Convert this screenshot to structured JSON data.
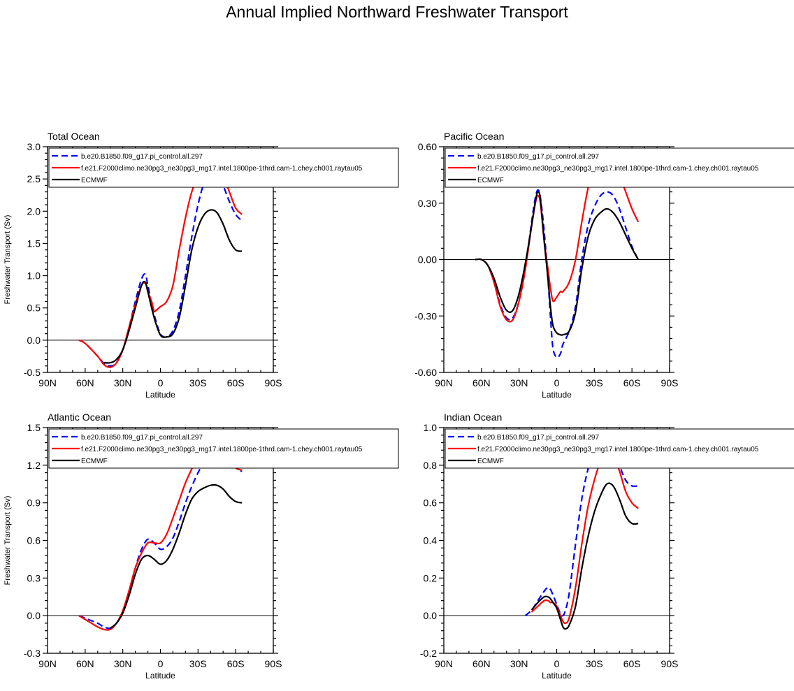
{
  "figure_title": "Annual Implied Northward Freshwater Transport",
  "legend_entries": [
    "b.e20.B1850.f09_g17.pi_control.all.297",
    "f.e21.F2000climo.ne30pg3_ne30pg3_mg17.intel.1800pe-1thrd.cam-1.chey.ch001.raytau05",
    "ECMWF"
  ],
  "colors": {
    "series_0": "#0000ff",
    "series_1": "#ff0000",
    "series_2": "#000000",
    "axis": "#000000"
  },
  "chart_data": [
    {
      "type": "line",
      "title": "Total Ocean",
      "xlabel": "Latitude",
      "ylabel": "Freshwater Transport (Sv)",
      "xlim": [
        90,
        -90
      ],
      "xticks": [
        90,
        60,
        30,
        0,
        -30,
        -60,
        -90
      ],
      "xticklabels": [
        "90N",
        "60N",
        "30N",
        "0",
        "30S",
        "60S",
        "90S"
      ],
      "ylim": [
        -0.5,
        3.0
      ],
      "yticks": [
        -0.5,
        0.0,
        0.5,
        1.0,
        1.5,
        2.0,
        2.5,
        3.0
      ],
      "yticklabels": [
        "-0.5",
        "0.0",
        "0.5",
        "1.0",
        "1.5",
        "2.0",
        "2.5",
        "3.0"
      ],
      "series": [
        {
          "name": "b.e20.B1850.f09_g17.pi_control.all.297",
          "style": "dashed",
          "x": [
            65,
            60,
            50,
            45,
            40,
            35,
            30,
            25,
            20,
            15,
            12,
            10,
            5,
            0,
            -5,
            -10,
            -15,
            -20,
            -25,
            -30,
            -35,
            -40,
            -45,
            -50,
            -55,
            -60,
            -65
          ],
          "y": [
            0.0,
            -0.05,
            -0.25,
            -0.36,
            -0.4,
            -0.35,
            -0.15,
            0.2,
            0.6,
            0.95,
            1.02,
            0.85,
            0.4,
            0.1,
            0.05,
            0.15,
            0.45,
            1.0,
            1.6,
            2.1,
            2.45,
            2.62,
            2.6,
            2.4,
            2.15,
            1.95,
            1.85
          ]
        },
        {
          "name": "f.e21.F2000climo.ne30pg3_ne30pg3_mg17.intel.1800pe-1thrd.cam-1.chey.ch001.raytau05",
          "style": "solid",
          "x": [
            65,
            60,
            50,
            45,
            40,
            35,
            30,
            25,
            20,
            15,
            12,
            10,
            7,
            5,
            3,
            0,
            -5,
            -10,
            -15,
            -20,
            -25,
            -30,
            -35,
            -40,
            -45,
            -50,
            -55,
            -60,
            -65
          ],
          "y": [
            0.0,
            -0.05,
            -0.25,
            -0.38,
            -0.42,
            -0.35,
            -0.15,
            0.2,
            0.55,
            0.85,
            0.88,
            0.75,
            0.6,
            0.45,
            0.47,
            0.52,
            0.6,
            0.85,
            1.4,
            1.9,
            2.3,
            2.55,
            2.72,
            2.82,
            2.75,
            2.55,
            2.3,
            2.05,
            1.95
          ]
        },
        {
          "name": "ECMWF",
          "style": "solid",
          "x": [
            45,
            40,
            35,
            30,
            25,
            20,
            15,
            12,
            10,
            5,
            0,
            -5,
            -10,
            -15,
            -20,
            -25,
            -30,
            -35,
            -40,
            -45,
            -50,
            -55,
            -60,
            -65
          ],
          "y": [
            -0.35,
            -0.35,
            -0.3,
            -0.15,
            0.15,
            0.5,
            0.85,
            0.9,
            0.75,
            0.35,
            0.08,
            0.05,
            0.1,
            0.35,
            0.85,
            1.4,
            1.75,
            1.95,
            2.02,
            1.98,
            1.8,
            1.55,
            1.4,
            1.38
          ]
        }
      ]
    },
    {
      "type": "line",
      "title": "Pacific Ocean",
      "xlabel": "Latitude",
      "ylabel": "",
      "xlim": [
        90,
        -90
      ],
      "xticks": [
        90,
        60,
        30,
        0,
        -30,
        -60,
        -90
      ],
      "xticklabels": [
        "90N",
        "60N",
        "30N",
        "0",
        "30S",
        "60S",
        "90S"
      ],
      "ylim": [
        -0.6,
        0.6
      ],
      "yticks": [
        -0.6,
        -0.3,
        0.0,
        0.3,
        0.6
      ],
      "yticklabels": [
        "-0.60",
        "-0.30",
        "0.00",
        "0.30",
        "0.60"
      ],
      "series": [
        {
          "name": "b.e20.B1850.f09_g17.pi_control.all.297",
          "style": "dashed",
          "x": [
            65,
            60,
            55,
            50,
            45,
            40,
            35,
            30,
            25,
            20,
            17,
            15,
            13,
            10,
            7,
            5,
            3,
            0,
            -3,
            -5,
            -10,
            -15,
            -20,
            -25,
            -30,
            -35,
            -40,
            -45,
            -50,
            -55,
            -60,
            -65
          ],
          "y": [
            0.0,
            0.0,
            -0.03,
            -0.12,
            -0.24,
            -0.31,
            -0.31,
            -0.22,
            -0.05,
            0.2,
            0.33,
            0.37,
            0.33,
            0.15,
            -0.1,
            -0.3,
            -0.47,
            -0.52,
            -0.5,
            -0.45,
            -0.38,
            -0.25,
            0.0,
            0.18,
            0.28,
            0.34,
            0.36,
            0.34,
            0.27,
            0.17,
            0.07,
            0.0
          ]
        },
        {
          "name": "f.e21.F2000climo.ne30pg3_ne30pg3_mg17.intel.1800pe-1thrd.cam-1.chey.ch001.raytau05",
          "style": "solid",
          "x": [
            65,
            60,
            55,
            50,
            45,
            40,
            35,
            30,
            25,
            20,
            17,
            15,
            13,
            10,
            7,
            5,
            3,
            0,
            -3,
            -5,
            -10,
            -15,
            -20,
            -25,
            -30,
            -35,
            -40,
            -45,
            -50,
            -55,
            -60,
            -65
          ],
          "y": [
            0.0,
            0.0,
            -0.03,
            -0.12,
            -0.25,
            -0.32,
            -0.32,
            -0.22,
            -0.05,
            0.18,
            0.3,
            0.34,
            0.3,
            0.1,
            -0.05,
            -0.15,
            -0.22,
            -0.2,
            -0.17,
            -0.17,
            -0.12,
            0.0,
            0.2,
            0.38,
            0.5,
            0.55,
            0.56,
            0.53,
            0.45,
            0.36,
            0.27,
            0.2
          ]
        },
        {
          "name": "ECMWF",
          "style": "solid",
          "x": [
            65,
            60,
            55,
            50,
            45,
            40,
            35,
            30,
            25,
            20,
            17,
            15,
            13,
            10,
            7,
            5,
            3,
            0,
            -3,
            -5,
            -10,
            -15,
            -20,
            -25,
            -30,
            -35,
            -40,
            -45,
            -50,
            -55,
            -60,
            -65
          ],
          "y": [
            0.0,
            0.0,
            -0.03,
            -0.1,
            -0.2,
            -0.27,
            -0.27,
            -0.18,
            -0.02,
            0.18,
            0.31,
            0.36,
            0.32,
            0.1,
            -0.1,
            -0.25,
            -0.35,
            -0.39,
            -0.4,
            -0.4,
            -0.38,
            -0.28,
            -0.05,
            0.12,
            0.21,
            0.25,
            0.27,
            0.25,
            0.2,
            0.13,
            0.06,
            0.0
          ]
        }
      ]
    },
    {
      "type": "line",
      "title": "Atlantic Ocean",
      "xlabel": "Latitude",
      "ylabel": "Freshwater Transport (Sv)",
      "xlim": [
        90,
        -90
      ],
      "xticks": [
        90,
        60,
        30,
        0,
        -30,
        -60,
        -90
      ],
      "xticklabels": [
        "90N",
        "60N",
        "30N",
        "0",
        "30S",
        "60S",
        "90S"
      ],
      "ylim": [
        -0.3,
        1.5
      ],
      "yticks": [
        -0.3,
        0.0,
        0.3,
        0.6,
        0.9,
        1.2,
        1.5
      ],
      "yticklabels": [
        "-0.3",
        "0.0",
        "0.3",
        "0.6",
        "0.9",
        "1.2",
        "1.5"
      ],
      "series": [
        {
          "name": "b.e20.B1850.f09_g17.pi_control.all.297",
          "style": "dashed",
          "x": [
            65,
            60,
            55,
            50,
            45,
            40,
            35,
            30,
            25,
            20,
            15,
            10,
            5,
            0,
            -5,
            -10,
            -15,
            -20,
            -25,
            -30,
            -35,
            -40,
            -45,
            -50,
            -55,
            -60,
            -65
          ],
          "y": [
            0.0,
            -0.02,
            -0.04,
            -0.06,
            -0.09,
            -0.1,
            -0.06,
            0.03,
            0.18,
            0.38,
            0.53,
            0.61,
            0.58,
            0.53,
            0.55,
            0.62,
            0.75,
            0.9,
            1.03,
            1.14,
            1.23,
            1.3,
            1.34,
            1.32,
            1.25,
            1.18,
            1.15
          ]
        },
        {
          "name": "f.e21.F2000climo.ne30pg3_ne30pg3_mg17.intel.1800pe-1thrd.cam-1.chey.ch001.raytau05",
          "style": "solid",
          "x": [
            65,
            60,
            55,
            50,
            45,
            40,
            35,
            30,
            25,
            20,
            15,
            10,
            5,
            0,
            -5,
            -10,
            -15,
            -20,
            -25,
            -30,
            -35,
            -40,
            -45,
            -50,
            -55,
            -60,
            -65
          ],
          "y": [
            0.0,
            -0.03,
            -0.06,
            -0.09,
            -0.11,
            -0.11,
            -0.06,
            0.04,
            0.2,
            0.38,
            0.5,
            0.58,
            0.58,
            0.58,
            0.65,
            0.78,
            0.92,
            1.06,
            1.17,
            1.27,
            1.33,
            1.37,
            1.38,
            1.33,
            1.25,
            1.18,
            1.16
          ]
        },
        {
          "name": "ECMWF",
          "style": "solid",
          "x": [
            40,
            35,
            30,
            25,
            20,
            15,
            10,
            5,
            0,
            -5,
            -10,
            -15,
            -20,
            -25,
            -30,
            -35,
            -40,
            -45,
            -50,
            -55,
            -60,
            -65
          ],
          "y": [
            -0.1,
            -0.06,
            0.02,
            0.16,
            0.33,
            0.45,
            0.48,
            0.45,
            0.41,
            0.44,
            0.53,
            0.66,
            0.81,
            0.93,
            0.99,
            1.02,
            1.04,
            1.04,
            1.01,
            0.95,
            0.91,
            0.9
          ]
        }
      ]
    },
    {
      "type": "line",
      "title": "Indian Ocean",
      "xlabel": "Latitude",
      "ylabel": "",
      "xlim": [
        90,
        -90
      ],
      "xticks": [
        90,
        60,
        30,
        0,
        -30,
        -60,
        -90
      ],
      "xticklabels": [
        "90N",
        "60N",
        "30N",
        "0",
        "30S",
        "60S",
        "90S"
      ],
      "ylim": [
        -0.2,
        1.0
      ],
      "yticks": [
        -0.2,
        0.0,
        0.2,
        0.4,
        0.6,
        0.8,
        1.0
      ],
      "yticklabels": [
        "-0.2",
        "0.0",
        "0.2",
        "0.4",
        "0.6",
        "0.8",
        "1.0"
      ],
      "series": [
        {
          "name": "b.e20.B1850.f09_g17.pi_control.all.297",
          "style": "dashed",
          "x": [
            25,
            20,
            15,
            10,
            7,
            5,
            3,
            0,
            -3,
            -5,
            -7,
            -10,
            -15,
            -20,
            -25,
            -30,
            -35,
            -40,
            -45,
            -50,
            -55,
            -60,
            -65
          ],
          "y": [
            0.0,
            0.03,
            0.08,
            0.13,
            0.15,
            0.14,
            0.11,
            0.06,
            0.01,
            0.0,
            0.03,
            0.12,
            0.38,
            0.62,
            0.78,
            0.88,
            0.93,
            0.95,
            0.9,
            0.8,
            0.72,
            0.69,
            0.69
          ]
        },
        {
          "name": "f.e21.F2000climo.ne30pg3_ne30pg3_mg17.intel.1800pe-1thrd.cam-1.chey.ch001.raytau05",
          "style": "solid",
          "x": [
            20,
            15,
            10,
            7,
            5,
            3,
            0,
            -3,
            -5,
            -7,
            -10,
            -15,
            -20,
            -25,
            -30,
            -35,
            -40,
            -45,
            -50,
            -55,
            -60,
            -65
          ],
          "y": [
            0.02,
            0.05,
            0.08,
            0.08,
            0.07,
            0.07,
            0.05,
            0.0,
            -0.03,
            -0.04,
            -0.01,
            0.15,
            0.38,
            0.58,
            0.72,
            0.82,
            0.87,
            0.85,
            0.77,
            0.66,
            0.6,
            0.57
          ]
        },
        {
          "name": "ECMWF",
          "style": "solid",
          "x": [
            20,
            15,
            10,
            7,
            5,
            3,
            0,
            -3,
            -5,
            -7,
            -10,
            -15,
            -20,
            -25,
            -30,
            -35,
            -40,
            -45,
            -50,
            -55,
            -60,
            -65
          ],
          "y": [
            0.03,
            0.07,
            0.1,
            0.1,
            0.09,
            0.07,
            0.04,
            -0.02,
            -0.06,
            -0.07,
            -0.05,
            0.05,
            0.25,
            0.42,
            0.55,
            0.64,
            0.7,
            0.69,
            0.62,
            0.53,
            0.49,
            0.49
          ]
        }
      ]
    }
  ]
}
